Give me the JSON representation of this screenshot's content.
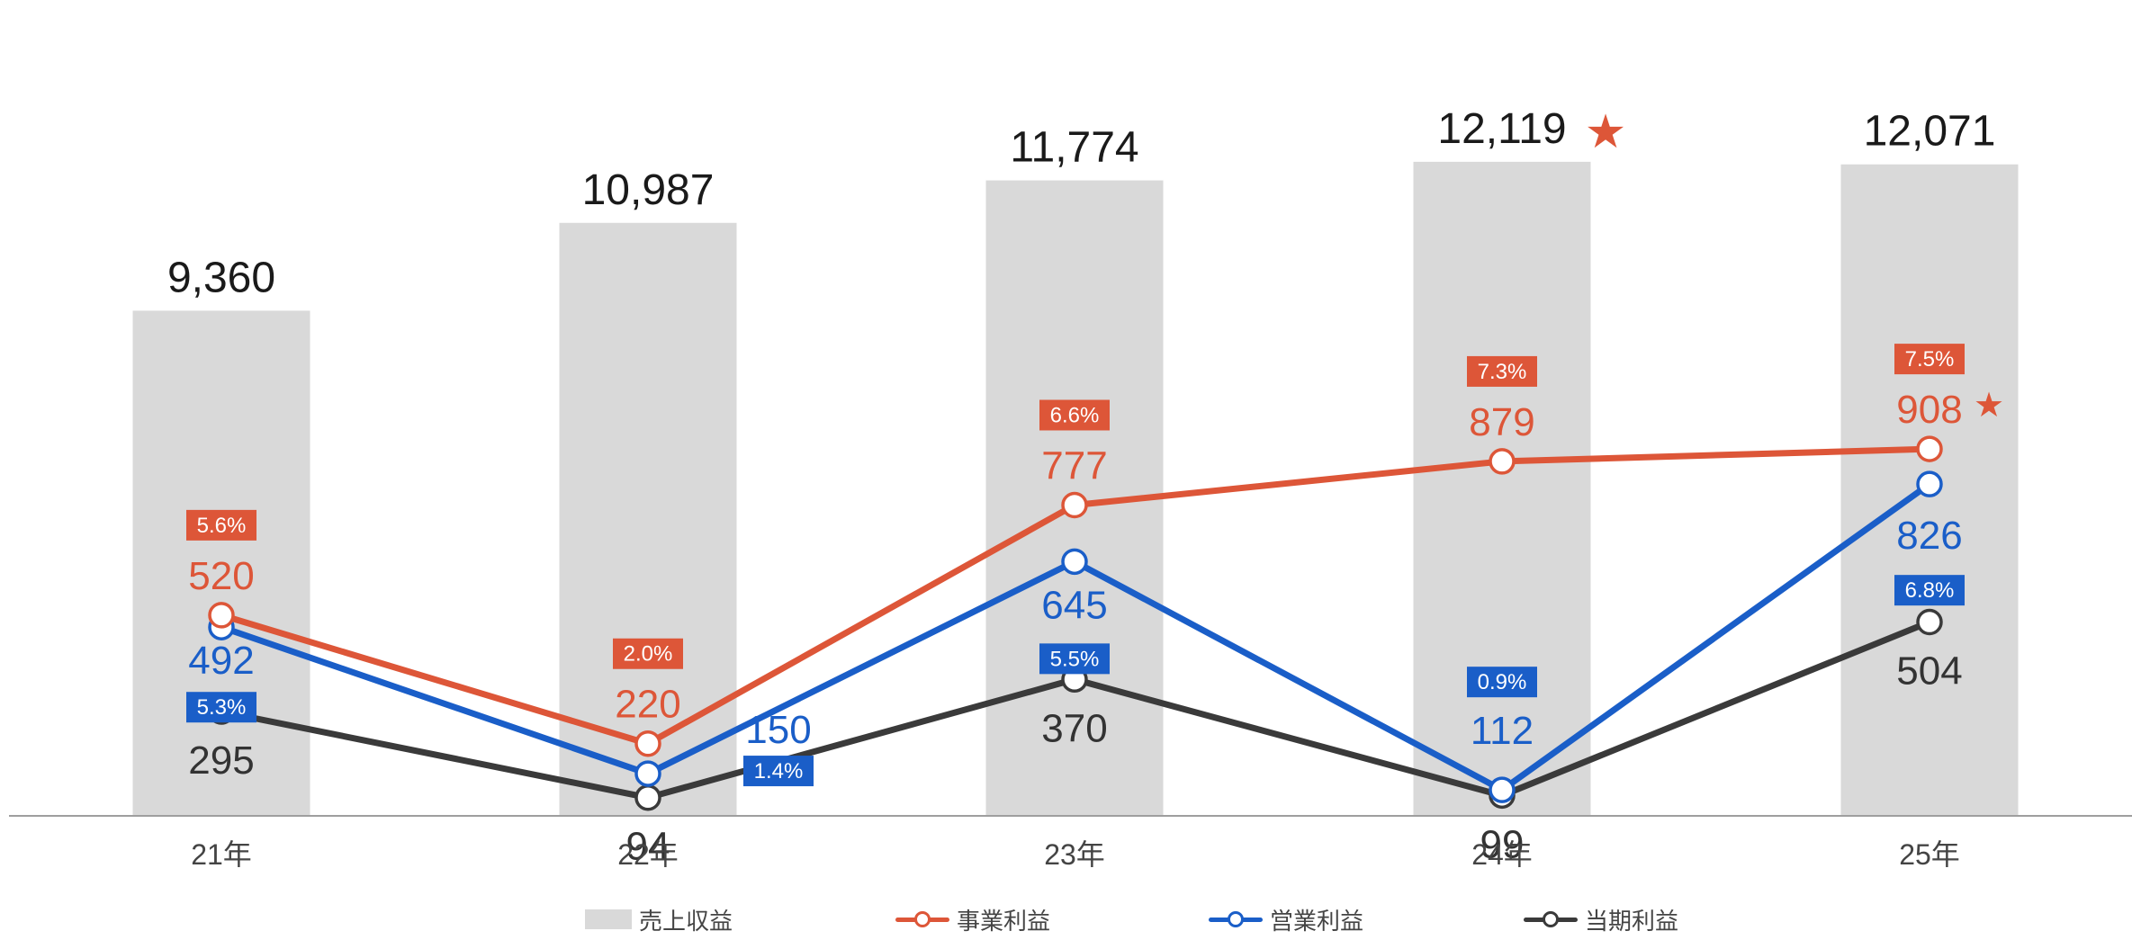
{
  "chart_data": {
    "type": "bar",
    "title": "",
    "xlabel": "",
    "ylabel": "",
    "categories": [
      "21年",
      "22年",
      "23年",
      "24年",
      "25年"
    ],
    "revenue": {
      "name": "売上収益",
      "values": [
        9360,
        10987,
        11774,
        12119,
        12071
      ],
      "labels": [
        "9,360",
        "10,987",
        "11,774",
        "12,119",
        "12,071"
      ],
      "color": "#d9d9d9",
      "star_index": 3
    },
    "lines": [
      {
        "key": "business",
        "name": "事業利益",
        "values": [
          520,
          220,
          777,
          879,
          908
        ],
        "margins": [
          "5.6%",
          "2.0%",
          "6.6%",
          "7.3%",
          "7.5%"
        ],
        "color": "#dd5638",
        "star_index": 4
      },
      {
        "key": "operating",
        "name": "営業利益",
        "values": [
          492,
          150,
          645,
          112,
          826
        ],
        "margins": [
          "5.3%",
          "1.4%",
          "5.5%",
          "0.9%",
          "6.8%"
        ],
        "color": "#1a5ec8"
      },
      {
        "key": "net",
        "name": "当期利益",
        "values": [
          295,
          94,
          370,
          99,
          504
        ],
        "color": "#3a3a3a"
      }
    ],
    "star_symbol": "★",
    "star_color": "#dd5638",
    "grid": false,
    "legend_position": "bottom"
  },
  "legend": {
    "revenue": "売上収益",
    "business": "事業利益",
    "operating": "営業利益",
    "net": "当期利益"
  }
}
